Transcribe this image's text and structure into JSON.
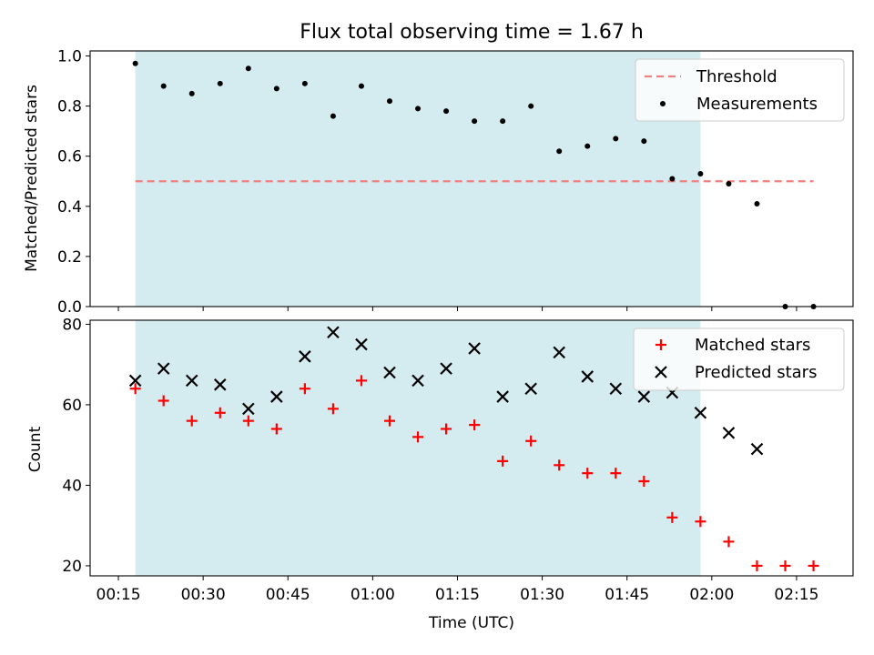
{
  "title": "Flux total observing time = 1.67 h",
  "colors": {
    "shade": "#d4ebf0",
    "threshold": "#f08080",
    "matched": "#ff0000",
    "predicted": "#000000",
    "measurement": "#000000"
  },
  "chart_data": [
    {
      "type": "scatter",
      "ylabel": "Matched/Predicted stars",
      "xlim": [
        "00:10",
        "02:25"
      ],
      "ylim": [
        0.0,
        1.02
      ],
      "yticks": [
        0.0,
        0.2,
        0.4,
        0.6,
        0.8,
        1.0
      ],
      "ytick_labels": [
        "0.0",
        "0.2",
        "0.4",
        "0.6",
        "0.8",
        "1.0"
      ],
      "shaded_span": [
        "00:18",
        "01:58"
      ],
      "legend_position": "top-right",
      "threshold": {
        "name": "Threshold",
        "y": 0.5,
        "x_range": [
          "00:18",
          "02:18"
        ]
      },
      "series": [
        {
          "name": "Measurements",
          "x": [
            "00:18",
            "00:23",
            "00:28",
            "00:33",
            "00:38",
            "00:43",
            "00:48",
            "00:53",
            "00:58",
            "01:03",
            "01:08",
            "01:13",
            "01:18",
            "01:23",
            "01:28",
            "01:33",
            "01:38",
            "01:43",
            "01:48",
            "01:53",
            "01:58",
            "02:03",
            "02:08",
            "02:13",
            "02:18"
          ],
          "y": [
            0.97,
            0.88,
            0.85,
            0.89,
            0.95,
            0.87,
            0.89,
            0.76,
            0.88,
            0.82,
            0.79,
            0.78,
            0.74,
            0.74,
            0.8,
            0.62,
            0.64,
            0.67,
            0.66,
            0.51,
            0.53,
            0.49,
            0.41,
            0.0,
            0.0
          ]
        }
      ]
    },
    {
      "type": "scatter",
      "xlabel": "Time (UTC)",
      "ylabel": "Count",
      "xlim": [
        "00:10",
        "02:25"
      ],
      "ylim": [
        17.5,
        81
      ],
      "yticks": [
        20,
        40,
        60,
        80
      ],
      "ytick_labels": [
        "20",
        "40",
        "60",
        "80"
      ],
      "xticks": [
        "00:15",
        "00:30",
        "00:45",
        "01:00",
        "01:15",
        "01:30",
        "01:45",
        "02:00",
        "02:15"
      ],
      "shaded_span": [
        "00:18",
        "01:58"
      ],
      "legend_position": "top-right",
      "series": [
        {
          "name": "Matched stars",
          "marker": "plus",
          "x": [
            "00:18",
            "00:23",
            "00:28",
            "00:33",
            "00:38",
            "00:43",
            "00:48",
            "00:53",
            "00:58",
            "01:03",
            "01:08",
            "01:13",
            "01:18",
            "01:23",
            "01:28",
            "01:33",
            "01:38",
            "01:43",
            "01:48",
            "01:53",
            "01:58",
            "02:03",
            "02:08",
            "02:13",
            "02:18"
          ],
          "y": [
            64,
            61,
            56,
            58,
            56,
            54,
            64,
            59,
            66,
            56,
            52,
            54,
            55,
            46,
            51,
            45,
            43,
            43,
            41,
            32,
            31,
            26,
            20,
            20,
            20
          ]
        },
        {
          "name": "Predicted stars",
          "marker": "x",
          "x": [
            "00:18",
            "00:23",
            "00:28",
            "00:33",
            "00:38",
            "00:43",
            "00:48",
            "00:53",
            "00:58",
            "01:03",
            "01:08",
            "01:13",
            "01:18",
            "01:23",
            "01:28",
            "01:33",
            "01:38",
            "01:43",
            "01:48",
            "01:53",
            "01:58",
            "02:03",
            "02:08"
          ],
          "y": [
            66,
            69,
            66,
            65,
            59,
            62,
            72,
            78,
            75,
            68,
            66,
            69,
            74,
            62,
            64,
            73,
            67,
            64,
            62,
            63,
            58,
            53,
            49
          ]
        }
      ]
    }
  ]
}
